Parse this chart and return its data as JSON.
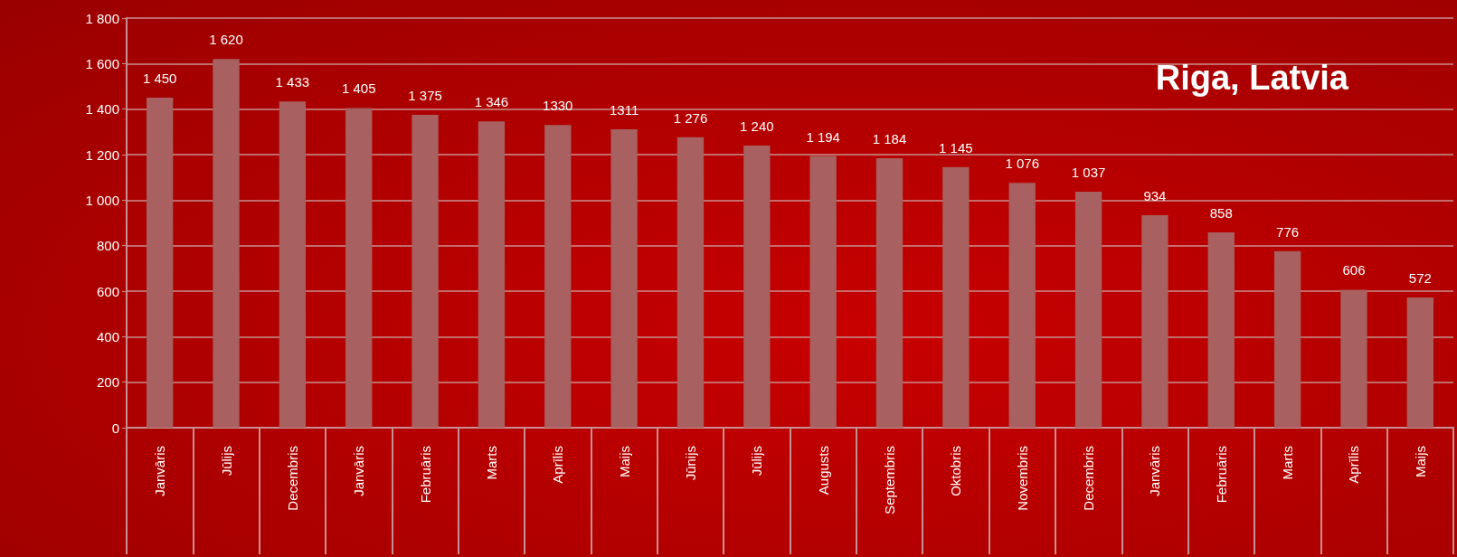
{
  "chart_data": {
    "type": "bar",
    "title": "Riga, Latvia",
    "categories": [
      "Janvāris",
      "Jūlijs",
      "Decembris",
      "Janvāris",
      "Februāris",
      "Marts",
      "Aprīlis",
      "Maijs",
      "Jūnijs",
      "Jūlijs",
      "Augusts",
      "Septembris",
      "Oktobris",
      "Novembris",
      "Decembris",
      "Janvāris",
      "Februāris",
      "Marts",
      "Aprīlis",
      "Maijs"
    ],
    "values": [
      1450,
      1620,
      1433,
      1405,
      1375,
      1346,
      1330,
      1311,
      1276,
      1240,
      1194,
      1184,
      1145,
      1076,
      1037,
      934,
      858,
      776,
      606,
      572
    ],
    "value_labels": [
      "1 450",
      "1 620",
      "1 433",
      "1 405",
      "1 375",
      "1 346",
      "1330",
      "1311",
      "1 276",
      "1 240",
      "1 194",
      "1 184",
      "1 145",
      "1 076",
      "1 037",
      "934",
      "858",
      "776",
      "606",
      "572"
    ],
    "color": "#a86060",
    "ylim": [
      0,
      1800
    ],
    "yticks": [
      0,
      200,
      400,
      600,
      800,
      {
        "value": 1000,
        "label": "1 000"
      },
      {
        "value": 1200,
        "label": "1 200"
      },
      {
        "value": 1400,
        "label": "1 400"
      },
      {
        "value": 1600,
        "label": "1 600"
      },
      {
        "value": 1800,
        "label": "1 800"
      }
    ],
    "grid": "y"
  }
}
